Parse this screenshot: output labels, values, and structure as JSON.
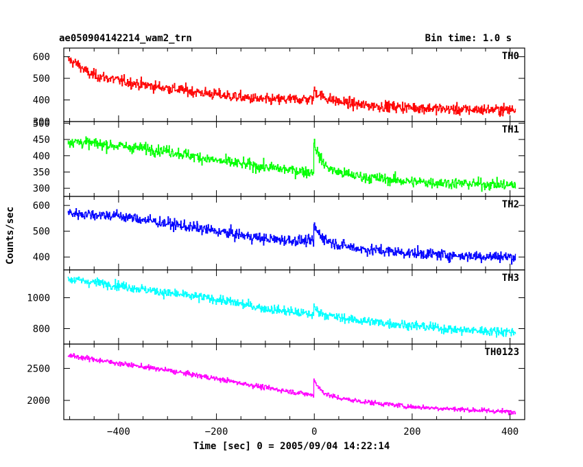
{
  "header": {
    "left_title": "ae050904142214_wam2_trn",
    "right_title": "Bin time: 1.0 s"
  },
  "chart_data": {
    "type": "line",
    "title": "ae050904142214_wam2_trn",
    "subtitle": "Bin time: 1.0 s",
    "xlabel": "Time [sec] 0 = 2005/09/04 14:22:14",
    "ylabel": "Counts/sec",
    "xlim": [
      -512,
      430
    ],
    "x_ticks": [
      -400,
      -200,
      0,
      200,
      400
    ],
    "x_tick_labels": [
      "−400",
      "−200",
      "0",
      "200",
      "400"
    ],
    "grid": false,
    "panels": [
      {
        "name": "TH0",
        "color": "#ff0000",
        "ylim": [
          300,
          640
        ],
        "y_ticks": [
          300,
          400,
          500,
          600
        ],
        "y_tick_labels": [
          "300",
          "400",
          "500",
          "600"
        ],
        "series": {
          "x": [
            -500,
            -480,
            -460,
            -400,
            -350,
            -300,
            -200,
            -100,
            0,
            100,
            200,
            300,
            400
          ],
          "y": [
            585,
            560,
            520,
            490,
            470,
            455,
            425,
            400,
            405,
            375,
            365,
            355,
            355
          ],
          "noise": 30
        },
        "events": [
          {
            "x": 0,
            "amp": 40,
            "decay": 20
          }
        ]
      },
      {
        "name": "TH1",
        "color": "#00ff00",
        "ylim": [
          275,
          505
        ],
        "y_ticks": [
          300,
          350,
          400,
          450,
          500
        ],
        "y_tick_labels": [
          "300",
          "350",
          "400",
          "450",
          "500"
        ],
        "series": {
          "x": [
            -500,
            -400,
            -300,
            -200,
            -100,
            -10,
            10,
            100,
            200,
            300,
            400
          ],
          "y": [
            445,
            430,
            415,
            385,
            365,
            350,
            355,
            335,
            320,
            315,
            310
          ],
          "noise": 20
        },
        "events": [
          {
            "x": 0,
            "amp": 90,
            "decay": 15
          }
        ]
      },
      {
        "name": "TH2",
        "color": "#0000ff",
        "ylim": [
          350,
          635
        ],
        "y_ticks": [
          400,
          500,
          600
        ],
        "y_tick_labels": [
          "400",
          "500",
          "600"
        ],
        "series": {
          "x": [
            -500,
            -400,
            -300,
            -200,
            -100,
            0,
            100,
            200,
            300,
            400
          ],
          "y": [
            570,
            560,
            530,
            500,
            470,
            460,
            430,
            415,
            405,
            400
          ],
          "noise": 25
        },
        "events": [
          {
            "x": 0,
            "amp": 60,
            "decay": 18
          }
        ]
      },
      {
        "name": "TH3",
        "color": "#00ffff",
        "ylim": [
          700,
          1180
        ],
        "y_ticks": [
          800,
          1000
        ],
        "y_tick_labels": [
          "800",
          "1000"
        ],
        "series": {
          "x": [
            -500,
            -400,
            -300,
            -200,
            -100,
            0,
            100,
            200,
            300,
            400
          ],
          "y": [
            1120,
            1080,
            1030,
            990,
            930,
            890,
            850,
            820,
            790,
            780
          ],
          "noise": 35
        },
        "events": [
          {
            "x": 0,
            "amp": 50,
            "decay": 15
          }
        ]
      },
      {
        "name": "TH0123",
        "color": "#ff00ff",
        "ylim": [
          1700,
          2880
        ],
        "y_ticks": [
          2000,
          2500
        ],
        "y_tick_labels": [
          "2000",
          "2500"
        ],
        "series": {
          "x": [
            -500,
            -400,
            -300,
            -200,
            -100,
            0,
            100,
            200,
            300,
            400
          ],
          "y": [
            2700,
            2580,
            2470,
            2340,
            2200,
            2080,
            1980,
            1900,
            1860,
            1820
          ],
          "noise": 45
        },
        "events": [
          {
            "x": 0,
            "amp": 250,
            "decay": 15
          }
        ]
      }
    ]
  }
}
